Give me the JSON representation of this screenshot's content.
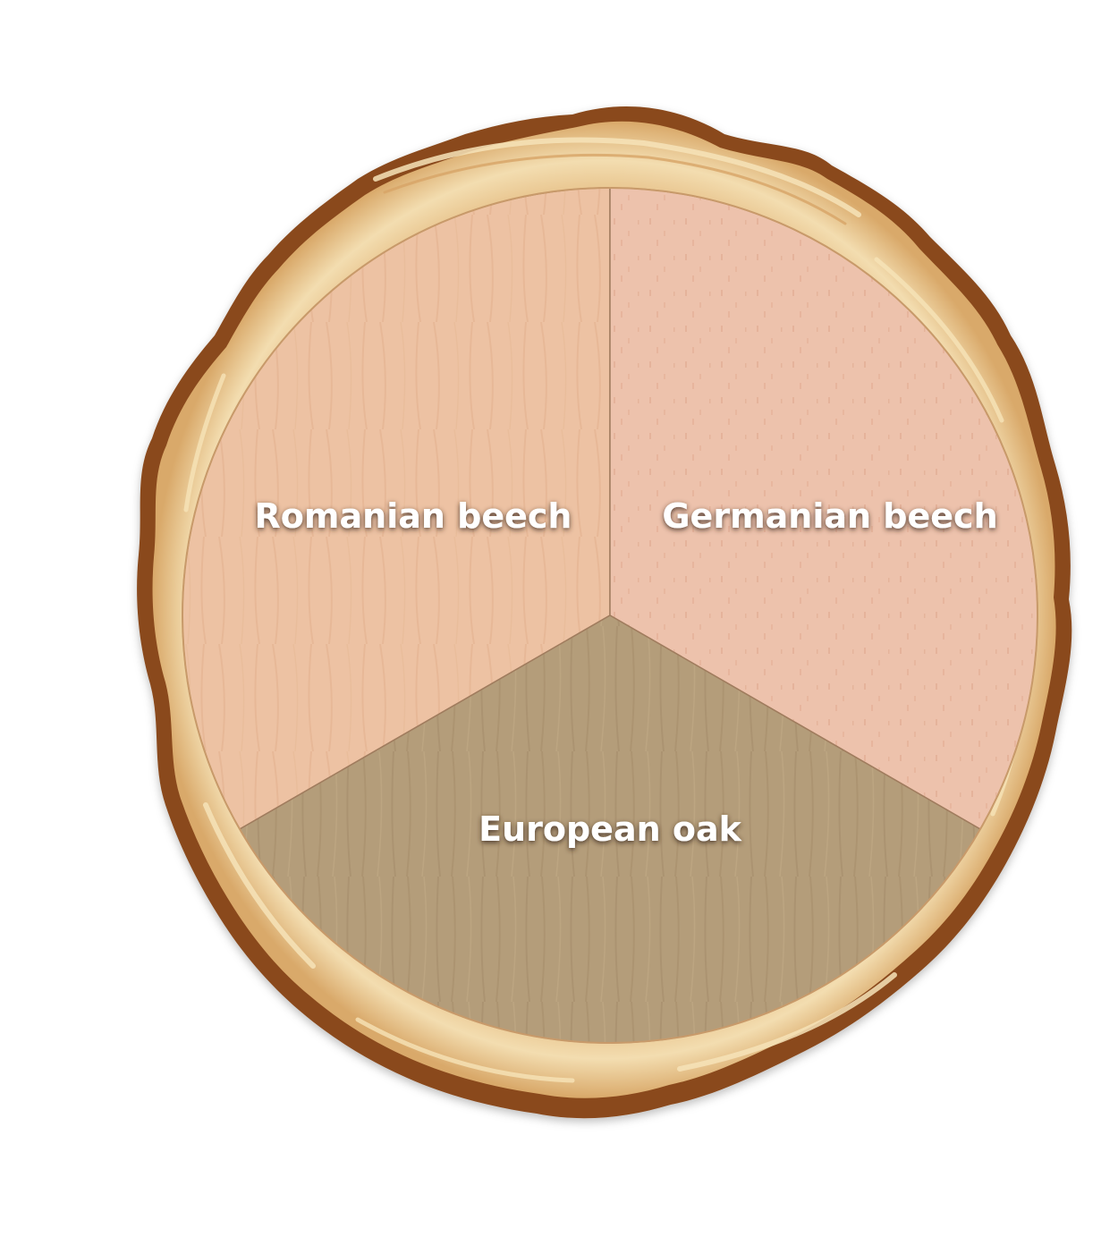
{
  "segments": [
    {
      "key": "romanian",
      "label": "Romanian beech",
      "color": "#EDC2A3"
    },
    {
      "key": "germanian",
      "label": "Germanian beech",
      "color": "#EDC2AC"
    },
    {
      "key": "european",
      "label": "European  oak",
      "color": "#B49D7A"
    }
  ],
  "colors": {
    "bark": "#8A4A1C",
    "sapwood": "#E9C88F",
    "ring_highlight": "#F6E3B8",
    "label_shadow": "#3B2A1A"
  }
}
